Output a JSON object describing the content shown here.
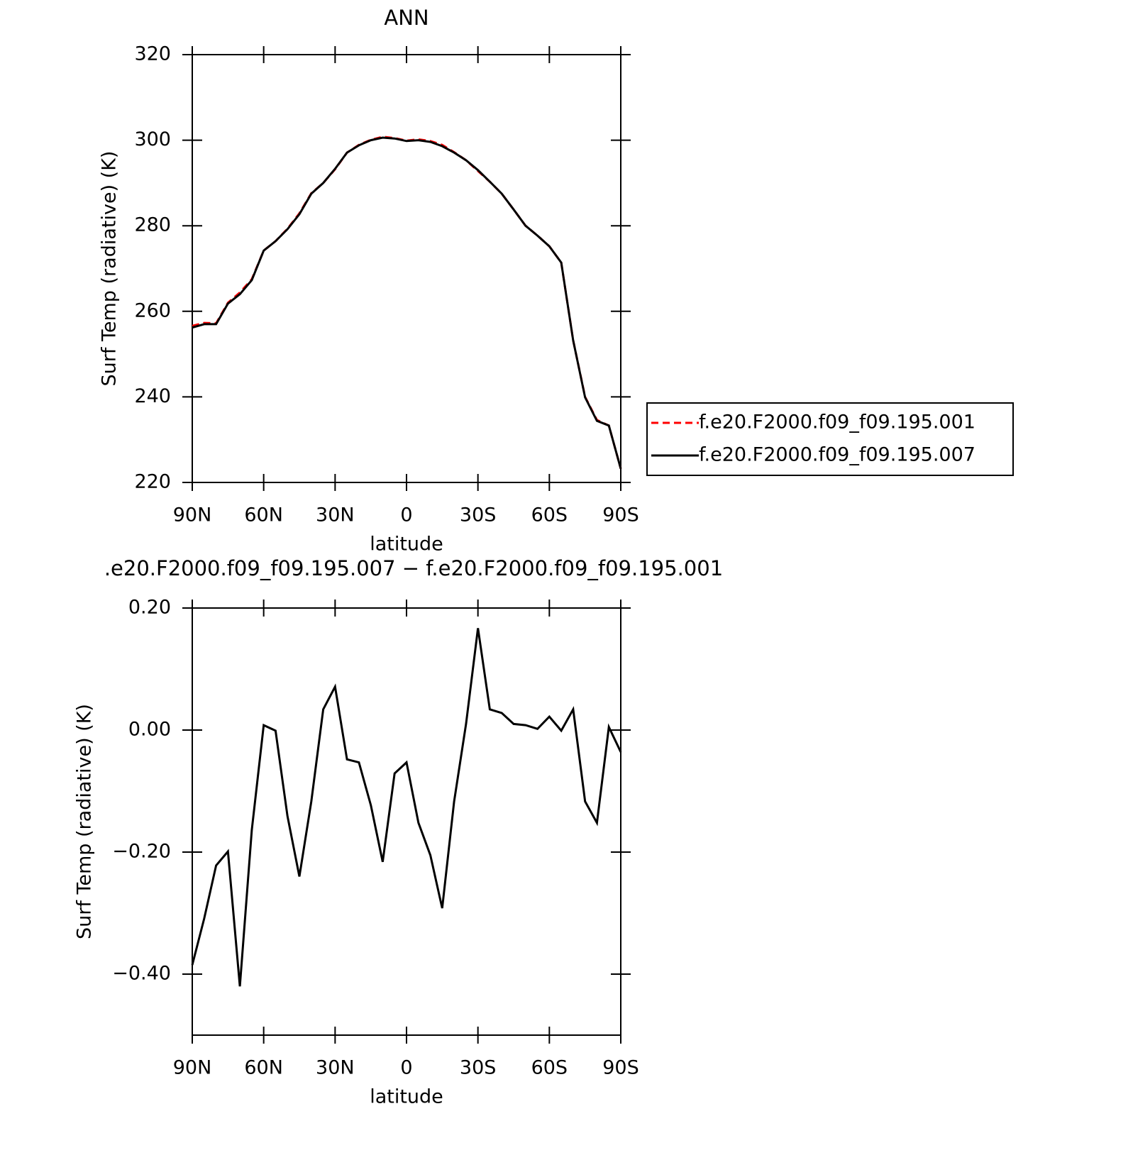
{
  "chart_data": [
    {
      "type": "line",
      "title": "ANN",
      "y_label": "Surf Temp (radiative) (K)",
      "x_label": "latitude",
      "x": [
        90,
        85,
        80,
        75,
        70,
        65,
        60,
        55,
        50,
        45,
        40,
        35,
        30,
        25,
        20,
        15,
        10,
        5,
        0,
        -5,
        -10,
        -15,
        -20,
        -25,
        -30,
        -35,
        -40,
        -45,
        -50,
        -55,
        -60,
        -65,
        -70,
        -75,
        -80,
        -85,
        -90
      ],
      "series": [
        {
          "name": "f.e20.F2000.f09_f09.195.001",
          "color": "#ff0000",
          "linestyle": "dashed",
          "values": [
            256.6,
            257.3,
            257.2,
            262,
            264.4,
            267.5,
            274.2,
            276.4,
            279.3,
            282.9,
            287.6,
            290,
            293.2,
            297.1,
            298.9,
            300.1,
            300.8,
            300.5,
            299.9,
            300.2,
            299.8,
            298.9,
            297.2,
            295.3,
            292.8,
            290.3,
            287.5,
            283.8,
            280,
            277.7,
            275.2,
            271.4,
            253.2,
            240,
            234.6,
            233.3,
            223.2
          ]
        },
        {
          "name": "f.e20.F2000.f09_f09.195.007",
          "color": "#000000",
          "linestyle": "solid",
          "values": [
            256.2,
            257,
            257,
            261.8,
            264,
            267.3,
            274.2,
            276.4,
            279.2,
            282.7,
            287.5,
            290,
            293.3,
            297.1,
            298.8,
            300,
            300.6,
            300.4,
            299.8,
            300,
            299.6,
            298.6,
            297.1,
            295.3,
            293,
            290.3,
            287.5,
            283.8,
            280,
            277.7,
            275.2,
            271.4,
            253.2,
            239.9,
            234.4,
            233.3,
            223.2
          ]
        }
      ],
      "xlim": [
        90,
        -90
      ],
      "xticks": [
        {
          "value": 90,
          "label": "90N"
        },
        {
          "value": 60,
          "label": "60N"
        },
        {
          "value": 30,
          "label": "30N"
        },
        0,
        {
          "value": -30,
          "label": "30S"
        },
        {
          "value": -60,
          "label": "60S"
        },
        {
          "value": -90,
          "label": "90S"
        }
      ],
      "ylim": [
        220,
        320
      ],
      "yticks": [
        220,
        240,
        260,
        280,
        300,
        320
      ],
      "legend": "right"
    },
    {
      "type": "line",
      "title": ".e20.F2000.f09_f09.195.007 − f.e20.F2000.f09_f09.195.001",
      "y_label": "Surf Temp (radiative) (K)",
      "x_label": "latitude",
      "x": [
        90,
        85,
        80,
        75,
        70,
        65,
        60,
        55,
        50,
        45,
        40,
        35,
        30,
        25,
        20,
        15,
        10,
        5,
        0,
        -5,
        -10,
        -15,
        -20,
        -25,
        -30,
        -35,
        -40,
        -45,
        -50,
        -55,
        -60,
        -65,
        -70,
        -75,
        -80,
        -85,
        -90
      ],
      "series": [
        {
          "color": "#000000",
          "linestyle": "solid",
          "values": [
            -0.385,
            -0.309,
            -0.222,
            -0.199,
            -0.42,
            -0.164,
            0.008,
            -0.001,
            -0.141,
            -0.24,
            -0.117,
            0.034,
            0.071,
            -0.048,
            -0.053,
            -0.123,
            -0.216,
            -0.071,
            -0.053,
            -0.152,
            -0.205,
            -0.292,
            -0.117,
            0.01,
            0.167,
            0.034,
            0.028,
            0.01,
            0.008,
            0.002,
            0.022,
            -0.001,
            0.034,
            -0.117,
            -0.152,
            0.005,
            -0.036
          ]
        }
      ],
      "xlim": [
        90,
        -90
      ],
      "xticks": [
        {
          "value": 90,
          "label": "90N"
        },
        {
          "value": 60,
          "label": "60N"
        },
        {
          "value": 30,
          "label": "30N"
        },
        0,
        {
          "value": -30,
          "label": "30S"
        },
        {
          "value": -60,
          "label": "60S"
        },
        {
          "value": -90,
          "label": "90S"
        }
      ],
      "ylim": [
        -0.5,
        0.2
      ],
      "yticks": [
        {
          "value": -0.4,
          "label": "−0.40"
        },
        {
          "value": -0.2,
          "label": "−0.20"
        },
        {
          "value": 0,
          "label": "0.00"
        },
        {
          "value": 0.2,
          "label": "0.20"
        }
      ]
    }
  ]
}
